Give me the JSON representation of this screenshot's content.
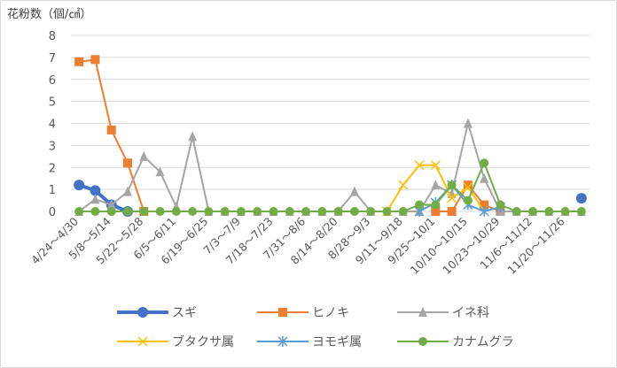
{
  "chart_data": {
    "type": "line",
    "title": "",
    "ylabel": "花粉数（個/㎠）",
    "xlabel": "",
    "ylim": [
      0,
      8
    ],
    "yticks": [
      0,
      1,
      2,
      3,
      4,
      5,
      6,
      7,
      8
    ],
    "grid": true,
    "legend_position": "bottom",
    "categories": [
      "4/24～4/30",
      "",
      "5/8～5/14",
      "",
      "5/22～5/28",
      "",
      "6/5～6/11",
      "",
      "6/19～6/25",
      "",
      "7/3～7/9",
      "",
      "7/18～7/23",
      "",
      "7/31～8/6",
      "",
      "8/14～8/20",
      "",
      "8/28～9/3",
      "",
      "9/11～9/18",
      "",
      "9/25～10/1",
      "",
      "10/10～10/15",
      "",
      "10/23～10/29",
      "",
      "11/6～11/12",
      "",
      "11/20～11/26",
      ""
    ],
    "series": [
      {
        "name": "スギ",
        "color": "#4472C4",
        "marker": "circle",
        "width": 4,
        "values": [
          1.2,
          0.95,
          0.3,
          0,
          null,
          null,
          null,
          null,
          null,
          null,
          null,
          null,
          null,
          null,
          null,
          null,
          null,
          null,
          null,
          null,
          null,
          null,
          null,
          null,
          null,
          null,
          null,
          null,
          null,
          null,
          null,
          0.6
        ]
      },
      {
        "name": "ヒノキ",
        "color": "#ED7D31",
        "marker": "square",
        "width": 2,
        "values": [
          6.8,
          6.9,
          3.7,
          2.2,
          0,
          null,
          null,
          null,
          null,
          null,
          null,
          null,
          null,
          null,
          null,
          null,
          null,
          null,
          null,
          null,
          null,
          null,
          0,
          0,
          1.2,
          0.3,
          0,
          null,
          null,
          null,
          null,
          null
        ]
      },
      {
        "name": "イネ科",
        "color": "#A5A5A5",
        "marker": "triangle",
        "width": 2,
        "values": [
          0,
          0.55,
          0.3,
          0.9,
          2.5,
          1.8,
          0.2,
          3.4,
          0,
          0,
          0,
          0,
          0,
          0,
          0,
          0,
          0,
          0.9,
          0,
          0,
          0,
          0,
          1.2,
          0.8,
          4.0,
          1.5,
          0,
          0,
          0,
          0,
          0,
          0
        ]
      },
      {
        "name": "ブタクサ属",
        "color": "#FFC000",
        "marker": "x",
        "width": 2,
        "values": [
          null,
          null,
          null,
          null,
          null,
          null,
          null,
          null,
          null,
          null,
          null,
          null,
          null,
          null,
          null,
          null,
          null,
          null,
          null,
          0,
          1.2,
          2.1,
          2.1,
          0.6,
          1.1,
          0,
          null,
          null,
          null,
          null,
          null,
          null
        ]
      },
      {
        "name": "ヨモギ属",
        "color": "#5B9BD5",
        "marker": "star",
        "width": 2,
        "values": [
          null,
          null,
          null,
          null,
          null,
          null,
          null,
          null,
          null,
          null,
          null,
          null,
          null,
          null,
          null,
          null,
          null,
          null,
          null,
          null,
          null,
          0,
          0.4,
          1.2,
          0.3,
          0,
          0.2,
          null,
          null,
          null,
          null,
          null
        ]
      },
      {
        "name": "カナムグラ",
        "color": "#70AD47",
        "marker": "circle",
        "width": 2,
        "values": [
          0,
          0,
          0,
          0,
          0,
          0,
          0,
          0,
          0,
          0,
          0,
          0,
          0,
          0,
          0,
          0,
          0,
          0,
          0,
          0,
          0,
          0.3,
          0.3,
          1.2,
          0.5,
          2.2,
          0.3,
          0,
          0,
          0,
          0,
          0
        ]
      }
    ]
  }
}
